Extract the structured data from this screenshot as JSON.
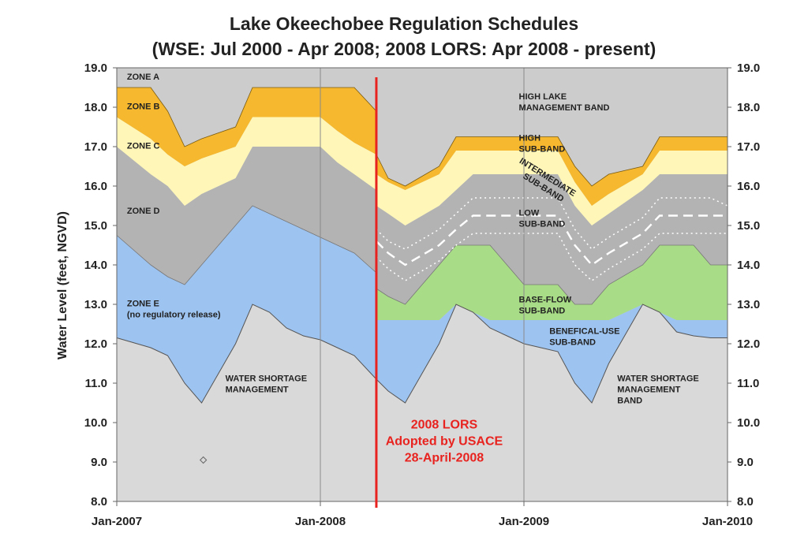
{
  "chart_data": {
    "type": "area",
    "title": "Lake Okeechobee Regulation Schedules",
    "subtitle": "(WSE: Jul 2000 - Apr 2008;  2008 LORS: Apr 2008 - present)",
    "ylabel": "Water Level (feet, NGVD)",
    "xlabel": "",
    "ylim": [
      8.0,
      19.0
    ],
    "xlim": [
      0,
      36
    ],
    "y_ticks": [
      "8.0",
      "9.0",
      "10.0",
      "11.0",
      "12.0",
      "13.0",
      "14.0",
      "15.0",
      "16.0",
      "17.0",
      "18.0",
      "19.0"
    ],
    "x_ticks": [
      {
        "x": 0,
        "label": "Jan-2007"
      },
      {
        "x": 12,
        "label": "Jan-2008"
      },
      {
        "x": 24,
        "label": "Jan-2009"
      },
      {
        "x": 36,
        "label": "Jan-2010"
      }
    ],
    "grid": "vertical",
    "colors": {
      "background": "#cccccc",
      "shortage": "#d9d9d9",
      "zone_e": "#9dc3f0",
      "zone_d": "#b3b3b3",
      "zone_c": "#fff6b8",
      "zone_b": "#f5b82e",
      "base_flow": "#a9dc86",
      "beneficial_use": "#9dc3f0",
      "divider": "#e8231f"
    },
    "divider": {
      "x": 15.3,
      "label_lines": [
        "2008 LORS",
        "Adopted by USACE",
        "28-April-2008"
      ]
    },
    "wse_segment": {
      "x": [
        0,
        2,
        3,
        4,
        5,
        7,
        8,
        9,
        10,
        11,
        12,
        13,
        14,
        15.3
      ],
      "zone_e_bottom": [
        12.15,
        11.9,
        11.7,
        11.0,
        10.5,
        12.0,
        13.0,
        12.8,
        12.4,
        12.2,
        12.1,
        11.9,
        11.7,
        11.1
      ],
      "zone_d_bottom": [
        14.75,
        14.0,
        13.7,
        13.5,
        14.0,
        15.0,
        15.5,
        15.3,
        15.1,
        14.9,
        14.7,
        14.5,
        14.3,
        13.8
      ],
      "zone_c_bottom": [
        17.0,
        16.3,
        16.0,
        15.5,
        15.8,
        16.2,
        17.0,
        17.0,
        17.0,
        17.0,
        17.0,
        16.6,
        16.3,
        15.9
      ],
      "zone_b_bottom": [
        17.75,
        17.2,
        16.8,
        16.5,
        16.7,
        17.0,
        17.75,
        17.75,
        17.75,
        17.75,
        17.75,
        17.4,
        17.1,
        16.8
      ],
      "zone_b_top": [
        18.5,
        18.5,
        17.9,
        17.0,
        17.2,
        17.5,
        18.5,
        18.5,
        18.5,
        18.5,
        18.5,
        18.5,
        18.5,
        17.9
      ]
    },
    "lors_segment": {
      "x": [
        15.3,
        16,
        17,
        19,
        20,
        21,
        22,
        23,
        24,
        25,
        26,
        27,
        28,
        29,
        31,
        32,
        33,
        34,
        35,
        36
      ],
      "bu_bottom": [
        11.1,
        10.8,
        10.5,
        12.0,
        13.0,
        12.8,
        12.4,
        12.2,
        12.0,
        11.9,
        11.8,
        11.0,
        10.5,
        11.5,
        13.0,
        12.8,
        12.3,
        12.2,
        12.15,
        12.15
      ],
      "bu_top": [
        12.6,
        12.6,
        12.6,
        12.6,
        13.0,
        12.8,
        12.6,
        12.6,
        12.6,
        12.6,
        12.6,
        12.6,
        12.6,
        12.6,
        13.0,
        12.8,
        12.6,
        12.6,
        12.6,
        12.6
      ],
      "bf_top": [
        13.4,
        13.2,
        13.0,
        14.0,
        14.5,
        14.5,
        14.5,
        14.0,
        13.5,
        13.5,
        13.5,
        13.0,
        13.0,
        13.5,
        14.0,
        14.5,
        14.5,
        14.5,
        14.0,
        14.0
      ],
      "int_top": [
        15.5,
        15.3,
        15.0,
        15.5,
        15.9,
        16.3,
        16.3,
        16.3,
        16.3,
        16.3,
        16.3,
        15.5,
        15.0,
        15.3,
        15.9,
        16.3,
        16.3,
        16.3,
        16.3,
        16.3
      ],
      "high_top": [
        16.3,
        16.1,
        15.9,
        16.3,
        16.9,
        16.9,
        16.9,
        16.9,
        16.9,
        16.9,
        16.9,
        16.1,
        15.5,
        15.8,
        16.3,
        16.9,
        16.9,
        16.9,
        16.9,
        16.9
      ],
      "band_top": [
        16.8,
        16.2,
        16.0,
        16.5,
        17.25,
        17.25,
        17.25,
        17.25,
        17.25,
        17.25,
        17.25,
        16.5,
        16.0,
        16.3,
        16.5,
        17.25,
        17.25,
        17.25,
        17.25,
        17.25
      ]
    },
    "low_subband_lines": {
      "x": [
        15.3,
        16,
        17,
        19,
        20,
        21,
        22,
        23,
        24,
        25,
        26,
        27,
        28,
        29,
        31,
        32,
        33,
        34,
        35,
        36
      ],
      "dashed": [
        14.6,
        14.3,
        14.0,
        14.5,
        14.9,
        15.25,
        15.25,
        15.25,
        15.25,
        15.25,
        15.25,
        14.5,
        14.0,
        14.3,
        14.8,
        15.25,
        15.25,
        15.25,
        15.25,
        15.25
      ],
      "dotted_upper": [
        14.9,
        14.6,
        14.4,
        14.9,
        15.3,
        15.7,
        15.7,
        15.7,
        15.7,
        15.7,
        15.7,
        14.9,
        14.4,
        14.7,
        15.2,
        15.7,
        15.7,
        15.7,
        15.7,
        15.5
      ],
      "dotted_lower": [
        14.2,
        13.9,
        13.6,
        14.1,
        14.5,
        14.8,
        14.8,
        14.8,
        14.8,
        14.8,
        14.8,
        14.0,
        13.6,
        13.9,
        14.4,
        14.8,
        14.8,
        14.8,
        14.8,
        14.8
      ]
    },
    "annotations": [
      {
        "lines": [
          "ZONE A"
        ],
        "x": 0.6,
        "y": 18.7
      },
      {
        "lines": [
          "ZONE B"
        ],
        "x": 0.6,
        "y": 17.95
      },
      {
        "lines": [
          "ZONE C"
        ],
        "x": 0.6,
        "y": 16.95
      },
      {
        "lines": [
          "ZONE D"
        ],
        "x": 0.6,
        "y": 15.3
      },
      {
        "lines": [
          "ZONE E",
          "(no regulatory release)"
        ],
        "x": 0.6,
        "y": 12.95
      },
      {
        "lines": [
          "WATER SHORTAGE",
          "MANAGEMENT"
        ],
        "x": 6.4,
        "y": 11.05
      },
      {
        "lines": [
          "HIGH LAKE",
          "MANAGEMENT BAND"
        ],
        "x": 23.7,
        "y": 18.2
      },
      {
        "lines": [
          "HIGH",
          "SUB-BAND"
        ],
        "x": 23.7,
        "y": 17.15
      },
      {
        "lines": [
          "LOW",
          "SUB-BAND"
        ],
        "x": 23.7,
        "y": 15.25
      },
      {
        "lines": [
          "BASE-FLOW",
          "SUB-BAND"
        ],
        "x": 23.7,
        "y": 13.05
      },
      {
        "lines": [
          "BENEFICAL-USE",
          "SUB-BAND"
        ],
        "x": 25.5,
        "y": 12.25
      },
      {
        "lines": [
          "WATER SHORTAGE",
          "MANAGEMENT",
          "BAND"
        ],
        "x": 29.5,
        "y": 11.05
      }
    ],
    "rotated_annotation": {
      "lines": [
        "INTERMEDIATE",
        "SUB-BAND"
      ],
      "x": 23.7,
      "y": 16.6,
      "angle": 32
    },
    "marker": {
      "x": 5.1,
      "y": 9.05
    }
  }
}
